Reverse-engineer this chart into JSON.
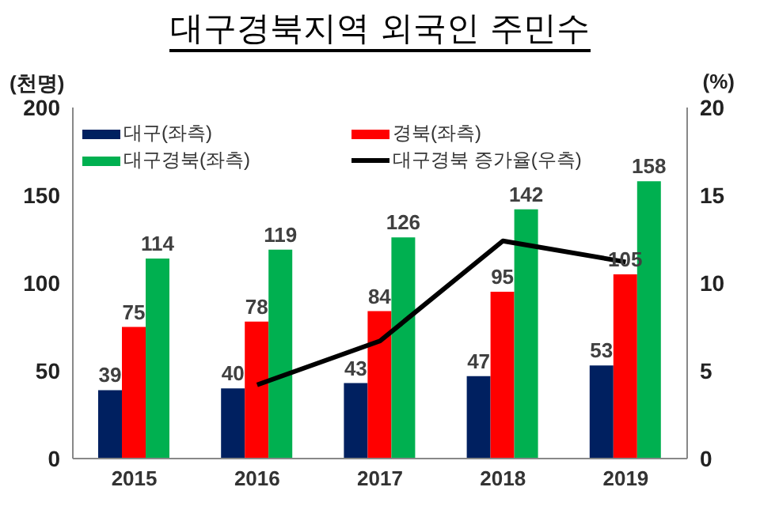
{
  "chart_data": {
    "type": "bar",
    "title": "대구경북지역 외국인 주민수",
    "ylabel": "(천명)",
    "y2label": "(%)",
    "categories": [
      "2015",
      "2016",
      "2017",
      "2018",
      "2019"
    ],
    "series": [
      {
        "name": "대구(좌측)",
        "color": "#002060",
        "values": [
          39,
          40,
          43,
          47,
          53
        ],
        "value_labels": [
          "39",
          "40",
          "43",
          "47",
          "53"
        ]
      },
      {
        "name": "경북(좌측)",
        "color": "#ff0000",
        "values": [
          75,
          78,
          84,
          95,
          105
        ],
        "value_labels": [
          "75",
          "78",
          "84",
          "95",
          "105"
        ]
      },
      {
        "name": "대구경북(좌측)",
        "color": "#00b050",
        "values": [
          114,
          119,
          126,
          142,
          158
        ],
        "value_labels": [
          "114",
          "119",
          "126",
          "142",
          "158"
        ]
      },
      {
        "name": "대구경북 증가율(우측)",
        "type": "line",
        "axis": "y2",
        "color": "#000000",
        "values": [
          null,
          4.2,
          6.7,
          12.4,
          11.2
        ]
      }
    ],
    "ylim": [
      0,
      200
    ],
    "yticks": [
      0,
      50,
      100,
      150,
      200
    ],
    "y2lim": [
      0,
      20
    ],
    "y2ticks": [
      0,
      5,
      10,
      15,
      20
    ],
    "legend": "top",
    "grid": false,
    "marker": "none",
    "line_style": "solid"
  }
}
